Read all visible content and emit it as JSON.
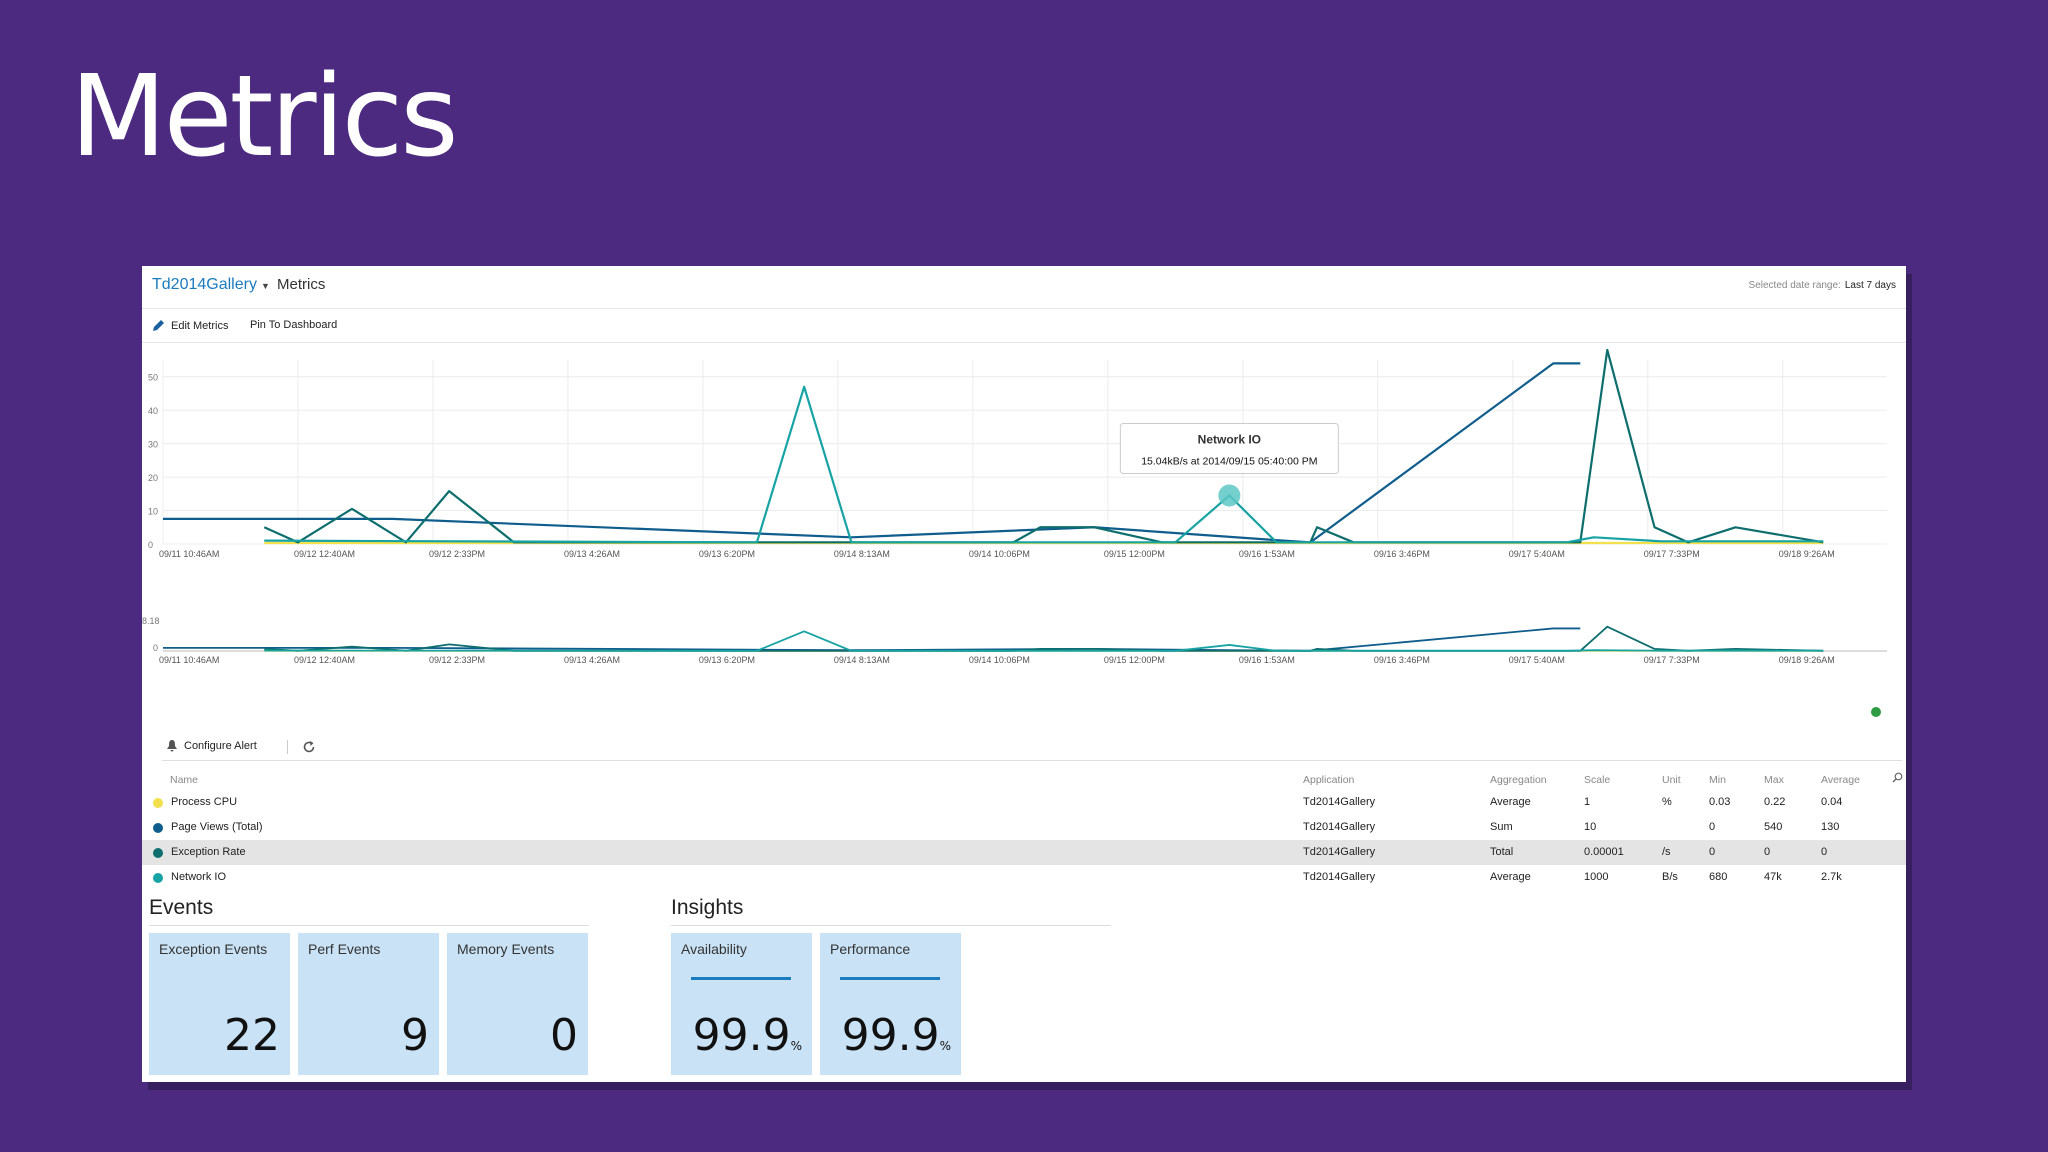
{
  "slide": {
    "title": "Metrics"
  },
  "header": {
    "app": "Td2014Gallery",
    "crumb": "Metrics",
    "range_label": "Selected date range:",
    "range_value": "Last 7 days"
  },
  "toolbar": {
    "edit": "Edit Metrics",
    "pin": "Pin To Dashboard"
  },
  "alert_bar": {
    "configure": "Configure Alert"
  },
  "colors": {
    "process_cpu": "#f2e14c",
    "page_views": "#0f5d8c",
    "exception_rate": "#0e6e6e",
    "network_io": "#17a3a3"
  },
  "chart_data": {
    "type": "line",
    "categories": [
      "09/11 10:46AM",
      "09/12 12:40AM",
      "09/12 2:33PM",
      "09/13 4:26AM",
      "09/13 6:20PM",
      "09/14 8:13AM",
      "09/14 10:06PM",
      "09/15 12:00PM",
      "09/16 1:53AM",
      "09/16 3:46PM",
      "09/17 5:40AM",
      "09/17 7:33PM",
      "09/18 9:26AM"
    ],
    "ylim": [
      0,
      55
    ],
    "yticks": [
      0,
      10,
      20,
      30,
      40,
      50
    ],
    "overview_ylabel": "8.18",
    "series": [
      {
        "name": "Process CPU",
        "color": "#f2e14c",
        "points": [
          [
            0.75,
            0.3
          ],
          [
            4,
            0.3
          ],
          [
            8,
            0.3
          ],
          [
            11.5,
            0.3
          ],
          [
            12.3,
            0.3
          ]
        ]
      },
      {
        "name": "Page Views (Total)",
        "color": "#0f5d8c",
        "points": [
          [
            0,
            7.5
          ],
          [
            1.7,
            7.5
          ],
          [
            5.1,
            2
          ],
          [
            6.9,
            5
          ],
          [
            8.3,
            1
          ],
          [
            8.5,
            0.5
          ],
          [
            10.3,
            54
          ],
          [
            10.5,
            54
          ]
        ]
      },
      {
        "name": "Exception Rate",
        "color": "#0e6e6e",
        "points": [
          [
            0.75,
            5
          ],
          [
            1,
            0.5
          ],
          [
            1.4,
            10.5
          ],
          [
            1.8,
            0.5
          ],
          [
            2.12,
            15.8
          ],
          [
            2.6,
            0.5
          ],
          [
            5.2,
            0.5
          ],
          [
            6.3,
            0.5
          ],
          [
            6.5,
            5
          ],
          [
            6.9,
            5
          ],
          [
            7.4,
            0.5
          ],
          [
            8.5,
            0.5
          ],
          [
            8.55,
            5
          ],
          [
            8.82,
            0.5
          ],
          [
            10.5,
            0.5
          ],
          [
            10.7,
            58
          ],
          [
            11.05,
            5
          ],
          [
            11.3,
            0.5
          ],
          [
            11.65,
            5
          ],
          [
            12.3,
            0.5
          ]
        ]
      },
      {
        "name": "Network IO",
        "color": "#17a3a3",
        "points": [
          [
            0.75,
            1
          ],
          [
            4.4,
            0.5
          ],
          [
            4.75,
            47
          ],
          [
            5.1,
            0.5
          ],
          [
            7.5,
            0.5
          ],
          [
            7.9,
            14.5
          ],
          [
            8.25,
            0.5
          ],
          [
            10.4,
            0.5
          ],
          [
            10.6,
            2
          ],
          [
            11.1,
            0.8
          ],
          [
            12.3,
            0.8
          ]
        ]
      }
    ],
    "tooltip": {
      "title": "Network IO",
      "text": "15.04kB/s at 2014/09/15 05:40:00 PM",
      "x": 7.9,
      "y": 14.5
    }
  },
  "table": {
    "headers": {
      "name": "Name",
      "app": "Application",
      "agg": "Aggregation",
      "scale": "Scale",
      "unit": "Unit",
      "min": "Min",
      "max": "Max",
      "avg": "Average"
    },
    "rows": [
      {
        "name": "Process CPU",
        "app": "Td2014Gallery",
        "agg": "Average",
        "scale": "1",
        "unit": "%",
        "min": "0.03",
        "max": "0.22",
        "avg": "0.04"
      },
      {
        "name": "Page Views (Total)",
        "app": "Td2014Gallery",
        "agg": "Sum",
        "scale": "10",
        "unit": "",
        "min": "0",
        "max": "540",
        "avg": "130"
      },
      {
        "name": "Exception Rate",
        "app": "Td2014Gallery",
        "agg": "Total",
        "scale": "0.00001",
        "unit": "/s",
        "min": "0",
        "max": "0",
        "avg": "0"
      },
      {
        "name": "Network IO",
        "app": "Td2014Gallery",
        "agg": "Average",
        "scale": "1000",
        "unit": "B/s",
        "min": "680",
        "max": "47k",
        "avg": "2.7k"
      }
    ]
  },
  "events": {
    "title": "Events",
    "tiles": [
      {
        "label": "Exception Events",
        "value": "22"
      },
      {
        "label": "Perf Events",
        "value": "9"
      },
      {
        "label": "Memory Events",
        "value": "0"
      }
    ]
  },
  "insights": {
    "title": "Insights",
    "tiles": [
      {
        "label": "Availability",
        "value": "99.9",
        "unit": "%"
      },
      {
        "label": "Performance",
        "value": "99.9",
        "unit": "%"
      }
    ]
  }
}
